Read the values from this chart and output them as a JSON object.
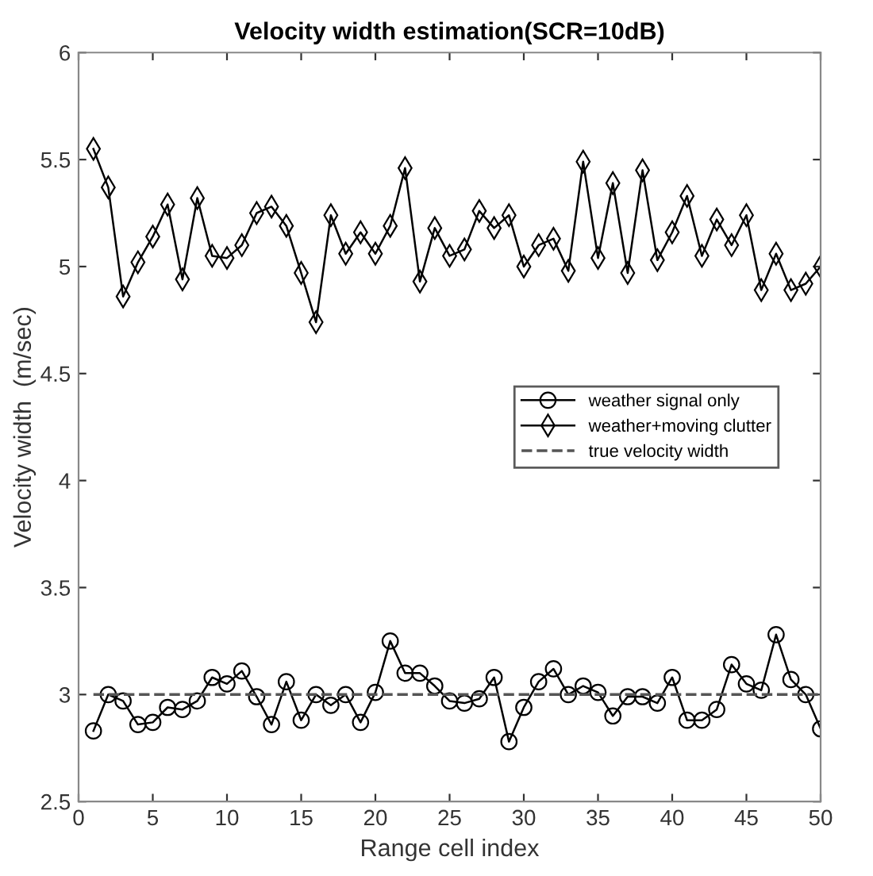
{
  "chart_data": {
    "type": "line",
    "title": "Velocity width estimation(SCR=10dB)",
    "xlabel": "Range cell index",
    "ylabel": "Velocity width  (m/sec)",
    "x": [
      1,
      2,
      3,
      4,
      5,
      6,
      7,
      8,
      9,
      10,
      11,
      12,
      13,
      14,
      15,
      16,
      17,
      18,
      19,
      20,
      21,
      22,
      23,
      24,
      25,
      26,
      27,
      28,
      29,
      30,
      31,
      32,
      33,
      34,
      35,
      36,
      37,
      38,
      39,
      40,
      41,
      42,
      43,
      44,
      45,
      46,
      47,
      48,
      49,
      50
    ],
    "xlim": [
      0,
      50
    ],
    "xticks": [
      0,
      5,
      10,
      15,
      20,
      25,
      30,
      35,
      40,
      45,
      50
    ],
    "ylim": [
      2.5,
      6
    ],
    "yticks": [
      2.5,
      3,
      3.5,
      4,
      4.5,
      5,
      5.5,
      6
    ],
    "grid": false,
    "legend": "right",
    "series": [
      {
        "name": "weather signal only",
        "color": "#000000",
        "marker": "circle",
        "line_style": "solid",
        "values": [
          2.83,
          3.0,
          2.97,
          2.86,
          2.87,
          2.94,
          2.93,
          2.97,
          3.08,
          3.05,
          3.11,
          2.99,
          2.86,
          3.06,
          2.88,
          3.0,
          2.95,
          3.0,
          2.87,
          3.01,
          3.25,
          3.1,
          3.1,
          3.04,
          2.97,
          2.96,
          2.98,
          3.08,
          2.78,
          2.94,
          3.06,
          3.12,
          3.0,
          3.04,
          3.01,
          2.9,
          2.99,
          2.99,
          2.96,
          3.08,
          2.88,
          2.88,
          2.93,
          3.14,
          3.05,
          3.02,
          3.28,
          3.07,
          3.0,
          2.84
        ]
      },
      {
        "name": "weather+moving clutter",
        "color": "#000000",
        "marker": "diamond",
        "line_style": "solid",
        "values": [
          5.55,
          5.37,
          4.86,
          5.02,
          5.14,
          5.29,
          4.94,
          5.32,
          5.05,
          5.04,
          5.1,
          5.25,
          5.28,
          5.19,
          4.97,
          4.74,
          5.24,
          5.06,
          5.16,
          5.06,
          5.19,
          5.46,
          4.93,
          5.18,
          5.05,
          5.08,
          5.26,
          5.18,
          5.24,
          5.0,
          5.1,
          5.13,
          4.98,
          5.49,
          5.04,
          5.39,
          4.97,
          5.45,
          5.03,
          5.16,
          5.33,
          5.05,
          5.22,
          5.1,
          5.24,
          4.89,
          5.06,
          4.89,
          4.92,
          5.0
        ]
      },
      {
        "name": "true velocity width",
        "color": "#555555",
        "marker": "none",
        "line_style": "dashed",
        "x": [
          1,
          50
        ],
        "values": [
          3,
          3
        ]
      }
    ]
  }
}
